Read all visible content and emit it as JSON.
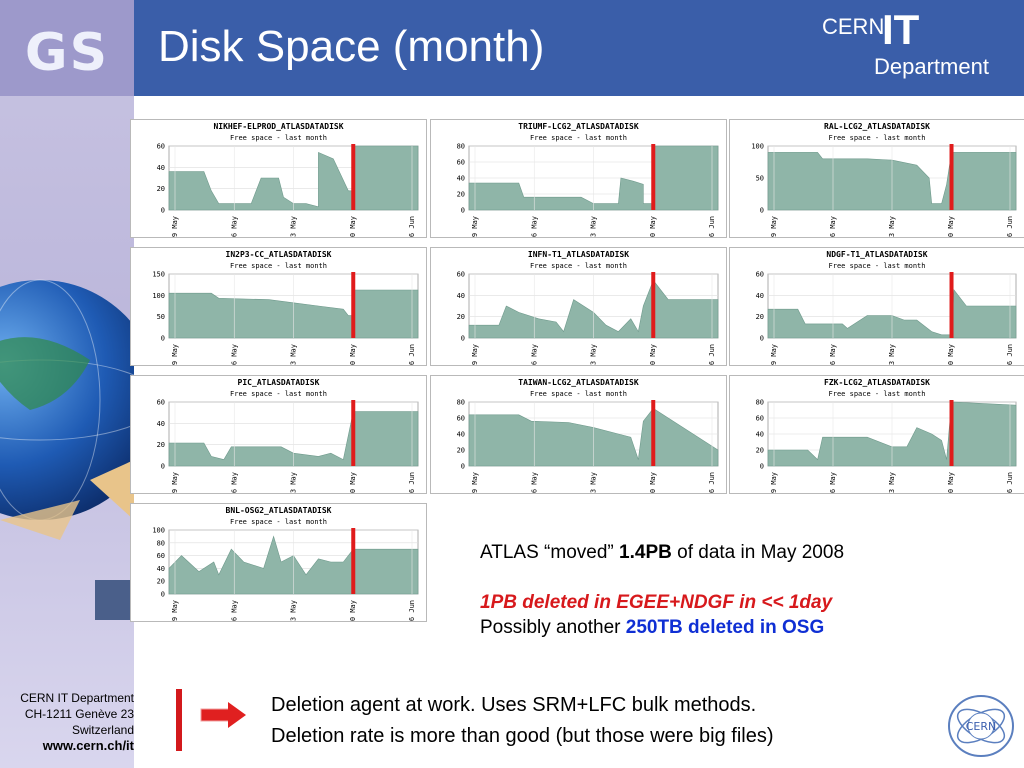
{
  "header": {
    "title": "Disk Space (month)",
    "brand_logo": "GS"
  },
  "cern_logo": {
    "cern": "CERN",
    "it": "IT",
    "dept": "Department"
  },
  "colors": {
    "header": "#3a5ea9",
    "area_fill": "#8fb5a8",
    "marker": "#e01b1b",
    "sidebar": "#c8c4e2"
  },
  "charts": [
    {
      "title": "NIKHEF-ELPROD_ATLASDATADISK",
      "subtitle": "Free space - last month",
      "yticks": [
        "0",
        "20",
        "40",
        "60"
      ],
      "xticks": [
        "9 May",
        "16 May",
        "23 May",
        "30 May",
        "6 Jun"
      ]
    },
    {
      "title": "TRIUMF-LCG2_ATLASDATADISK",
      "subtitle": "Free space - last month",
      "yticks": [
        "0",
        "20",
        "40",
        "60",
        "80"
      ],
      "xticks": [
        "9 May",
        "16 May",
        "23 May",
        "30 May",
        "6 Jun"
      ]
    },
    {
      "title": "RAL-LCG2_ATLASDATADISK",
      "subtitle": "Free space - last month",
      "yticks": [
        "0",
        "50",
        "100"
      ],
      "xticks": [
        "9 May",
        "16 May",
        "23 May",
        "30 May",
        "6 Jun"
      ]
    },
    {
      "title": "IN2P3-CC_ATLASDATADISK",
      "subtitle": "Free space - last month",
      "yticks": [
        "0",
        "50",
        "100",
        "150"
      ],
      "xticks": [
        "9 May",
        "16 May",
        "23 May",
        "30 May",
        "6 Jun"
      ]
    },
    {
      "title": "INFN-T1_ATLASDATADISK",
      "subtitle": "Free space - last month",
      "yticks": [
        "0",
        "20",
        "40",
        "60"
      ],
      "xticks": [
        "9 May",
        "16 May",
        "23 May",
        "30 May",
        "6 Jun"
      ]
    },
    {
      "title": "NDGF-T1_ATLASDATADISK",
      "subtitle": "Free space - last month",
      "yticks": [
        "0",
        "20",
        "40",
        "60"
      ],
      "xticks": [
        "9 May",
        "16 May",
        "23 May",
        "30 May",
        "6 Jun"
      ]
    },
    {
      "title": "PIC_ATLASDATADISK",
      "subtitle": "Free space - last month",
      "yticks": [
        "0",
        "20",
        "40",
        "60"
      ],
      "xticks": [
        "9 May",
        "16 May",
        "23 May",
        "30 May",
        "6 Jun"
      ]
    },
    {
      "title": "TAIWAN-LCG2_ATLASDATADISK",
      "subtitle": "Free space - last month",
      "yticks": [
        "0",
        "20",
        "40",
        "60",
        "80"
      ],
      "xticks": [
        "9 May",
        "16 May",
        "23 May",
        "30 May",
        "6 Jun"
      ]
    },
    {
      "title": "FZK-LCG2_ATLASDATADISK",
      "subtitle": "Free space - last month",
      "yticks": [
        "0",
        "20",
        "40",
        "60",
        "80"
      ],
      "xticks": [
        "9 May",
        "16 May",
        "23 May",
        "30 May",
        "6 Jun"
      ]
    },
    {
      "title": "BNL-OSG2_ATLASDATADISK",
      "subtitle": "Free space - last month",
      "yticks": [
        "0",
        "20",
        "40",
        "60",
        "80",
        "100"
      ],
      "xticks": [
        "9 May",
        "16 May",
        "23 May",
        "30 May",
        "6 Jun"
      ]
    }
  ],
  "note": {
    "line1_a": "ATLAS “moved” ",
    "line1_b": "1.4PB",
    "line1_c": " of data in May 2008",
    "line2": "1PB deleted in EGEE+NDGF in << 1day",
    "line3_a": "Possibly another ",
    "line3_b": "250TB deleted in OSG"
  },
  "footer": {
    "line1": "Deletion agent at work. Uses SRM+LFC bulk methods.",
    "line2": "Deletion rate is more than good (but those were big files)",
    "addr1": "CERN IT Department",
    "addr2": "CH-1211 Genève 23",
    "addr3": "Switzerland",
    "url": "www.cern.ch/it"
  }
}
